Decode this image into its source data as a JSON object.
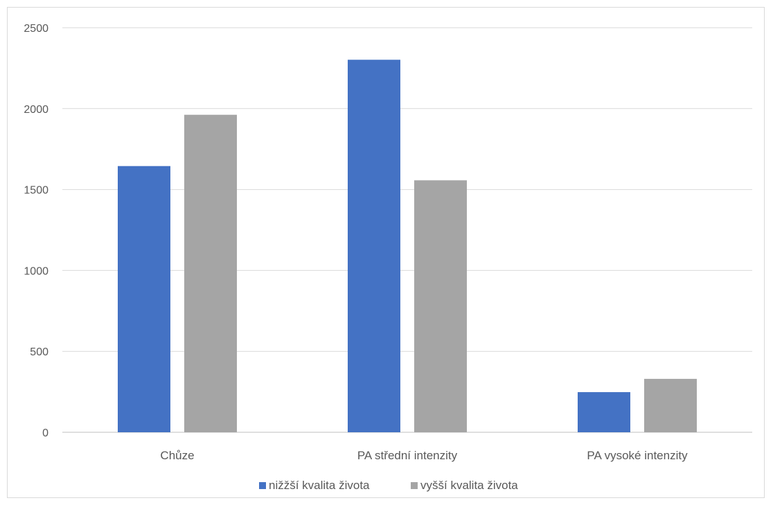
{
  "chart_data": {
    "type": "bar",
    "categories": [
      "Chůze",
      "PA střední intenzity",
      "PA vysoké intenzity"
    ],
    "series": [
      {
        "name": "nižžší kvalita života",
        "color": "#4472C4",
        "values": [
          1645,
          2302,
          248
        ]
      },
      {
        "name": "vyšší kvalita života",
        "color": "#A5A5A5",
        "values": [
          1962,
          1557,
          330
        ]
      }
    ],
    "yticks": [
      0,
      500,
      1000,
      1500,
      2000,
      2500
    ],
    "ylim": [
      0,
      2500
    ],
    "grid": true,
    "legend": "bottom",
    "title": "",
    "xlabel": "",
    "ylabel": ""
  }
}
